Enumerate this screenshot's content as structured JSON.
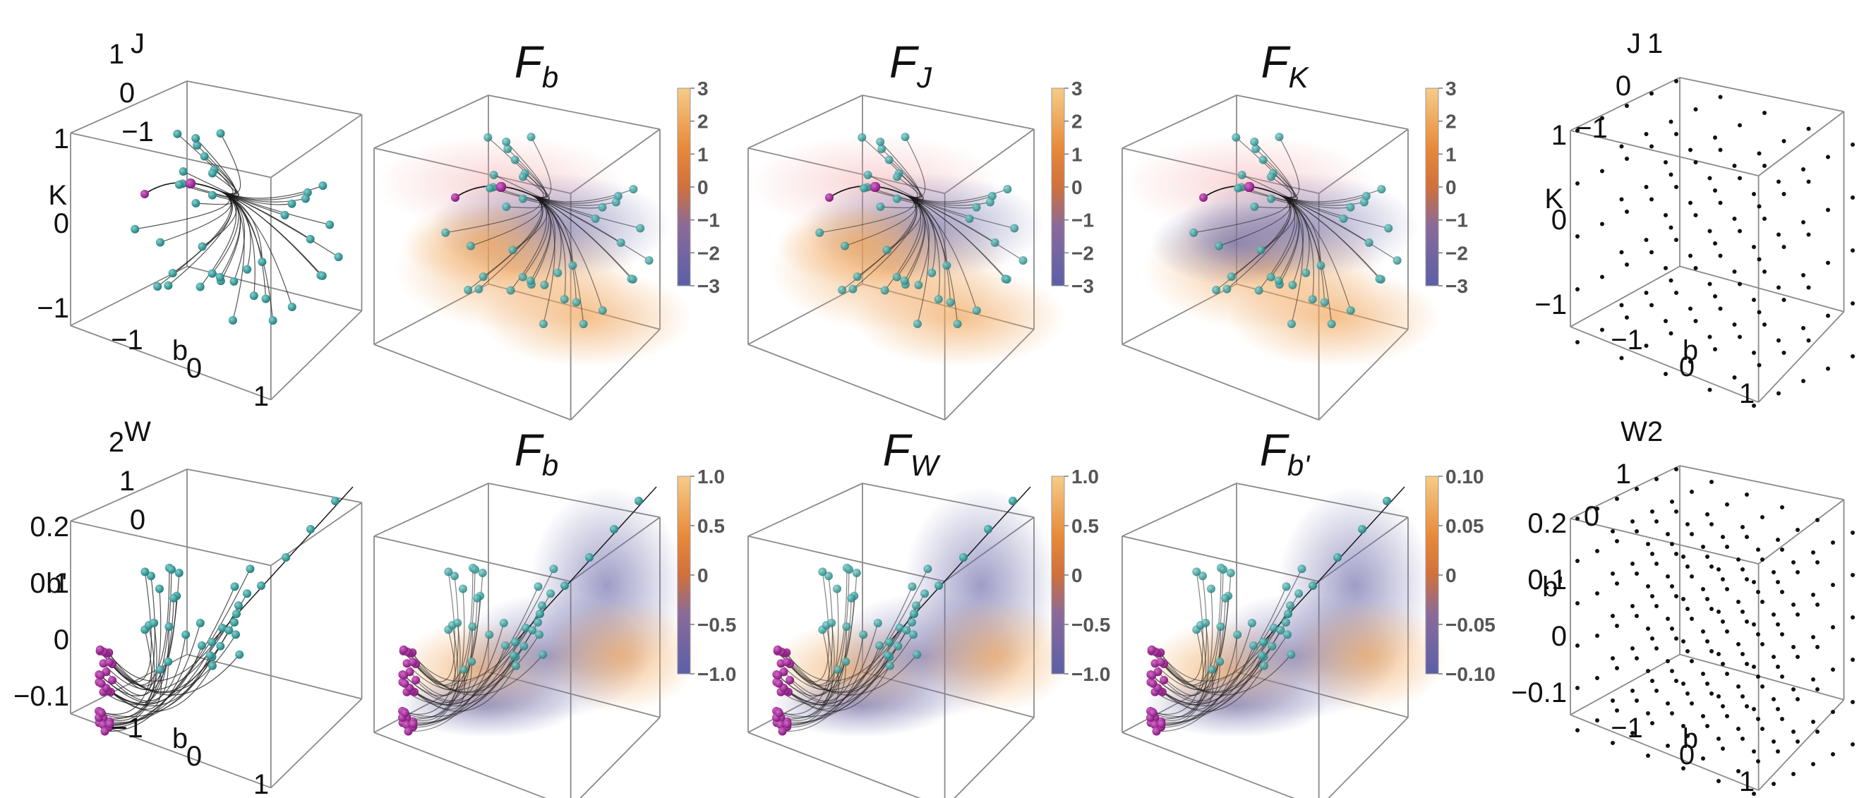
{
  "chart_data": {
    "type": "scatter",
    "rows": [
      {
        "id": "top",
        "axes": {
          "x_name": "b",
          "y_name": "K",
          "z_name": "J"
        },
        "ticks": {
          "x": [
            "−1",
            "0",
            "1"
          ],
          "y": [
            "1",
            "0",
            "−1"
          ],
          "z": [
            "−1",
            "0",
            "1"
          ]
        },
        "ranges": {
          "x": [
            -1,
            1
          ],
          "y": [
            -1,
            1
          ],
          "z": [
            -1,
            1
          ]
        },
        "titles": [
          "F_b",
          "F_J",
          "F_K"
        ],
        "subscripts": [
          "b",
          "J",
          "K"
        ],
        "colorbar_ticks": [
          "3",
          "2",
          "1",
          "0",
          "−1",
          "−2",
          "−3"
        ],
        "colorbar_range": [
          -3,
          3
        ],
        "trajectory_count": 40,
        "grid_points_per_axis": 5
      },
      {
        "id": "bottom",
        "axes": {
          "x_name": "b",
          "y_name": "b'",
          "z_name": "W"
        },
        "ticks": {
          "x": [
            "−1",
            "0",
            "1"
          ],
          "y": [
            "0.2",
            "0.1",
            "0",
            "−0.1"
          ],
          "z": [
            "0",
            "1",
            "2"
          ]
        },
        "ranges": {
          "x": [
            -1,
            1
          ],
          "y": [
            -0.1,
            0.2
          ],
          "z": [
            0,
            2
          ]
        },
        "titles": [
          "F_b",
          "F_W",
          "F_b'"
        ],
        "subscripts": [
          "b",
          "W",
          "b'"
        ],
        "colorbar_ticks": [
          [
            "1.0",
            "0.5",
            "0",
            "−0.5",
            "−1.0"
          ],
          [
            "1.0",
            "0.5",
            "0",
            "−0.5",
            "−1.0"
          ],
          [
            "0.10",
            "0.05",
            "0",
            "−0.05",
            "−0.10"
          ]
        ],
        "colorbar_ranges": [
          [
            -1,
            1
          ],
          [
            -1,
            1
          ],
          [
            -0.1,
            0.1
          ]
        ],
        "trajectory_count": 30,
        "grid_points_per_axis": 6
      }
    ],
    "colors": {
      "start_point": "#9a1f8f",
      "end_point": "#2a8f8f",
      "trajectory": "#1a1a1a",
      "colormap": [
        "#5b5fa8",
        "#8a6a9a",
        "#d0703c",
        "#e88a3a",
        "#f2b060",
        "#f6cc88"
      ],
      "grid_dot": "#111111",
      "box_edge": "#8a8a8a"
    },
    "legend": "none",
    "grid": false
  }
}
